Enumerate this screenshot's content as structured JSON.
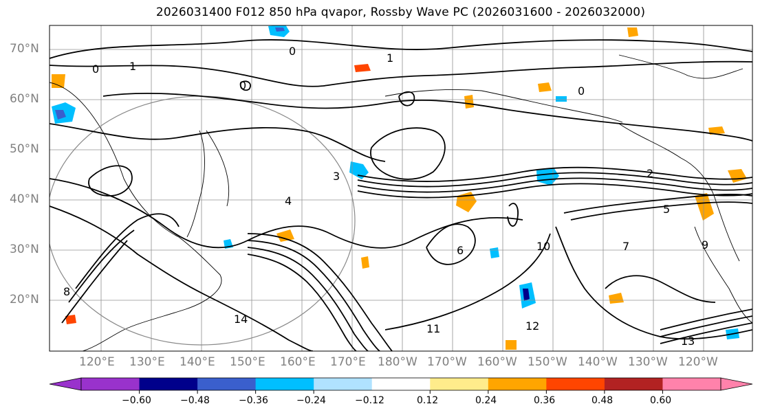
{
  "title": "2026031400 F012 850 hPa qvapor, Rossby Wave PC (2026031600 - 2026032000)",
  "map": {
    "lat_labels": [
      "70°N",
      "60°N",
      "50°N",
      "40°N",
      "30°N",
      "20°N"
    ],
    "lon_labels": [
      "120°E",
      "130°E",
      "140°E",
      "150°E",
      "160°E",
      "170°E",
      "180°W",
      "170°W",
      "160°W",
      "150°W",
      "140°W",
      "130°W",
      "120°W"
    ],
    "contour_labels": [
      "0",
      "1",
      "0",
      "0",
      "0",
      "1",
      "2",
      "3",
      "4",
      "5",
      "6",
      "7",
      "8",
      "9",
      "10",
      "11",
      "12",
      "13",
      "14"
    ]
  },
  "colorbar": {
    "ticks": [
      "−0.60",
      "−0.48",
      "−0.36",
      "−0.24",
      "−0.12",
      "0.12",
      "0.24",
      "0.36",
      "0.48",
      "0.60"
    ],
    "colors": [
      "#9932cc",
      "#00008b",
      "#3a5fcd",
      "#00bfff",
      "#b0e2ff",
      "#ffffff",
      "#ffec8b",
      "#ffa500",
      "#ff4500",
      "#b22222",
      "#ff82ab"
    ]
  }
}
